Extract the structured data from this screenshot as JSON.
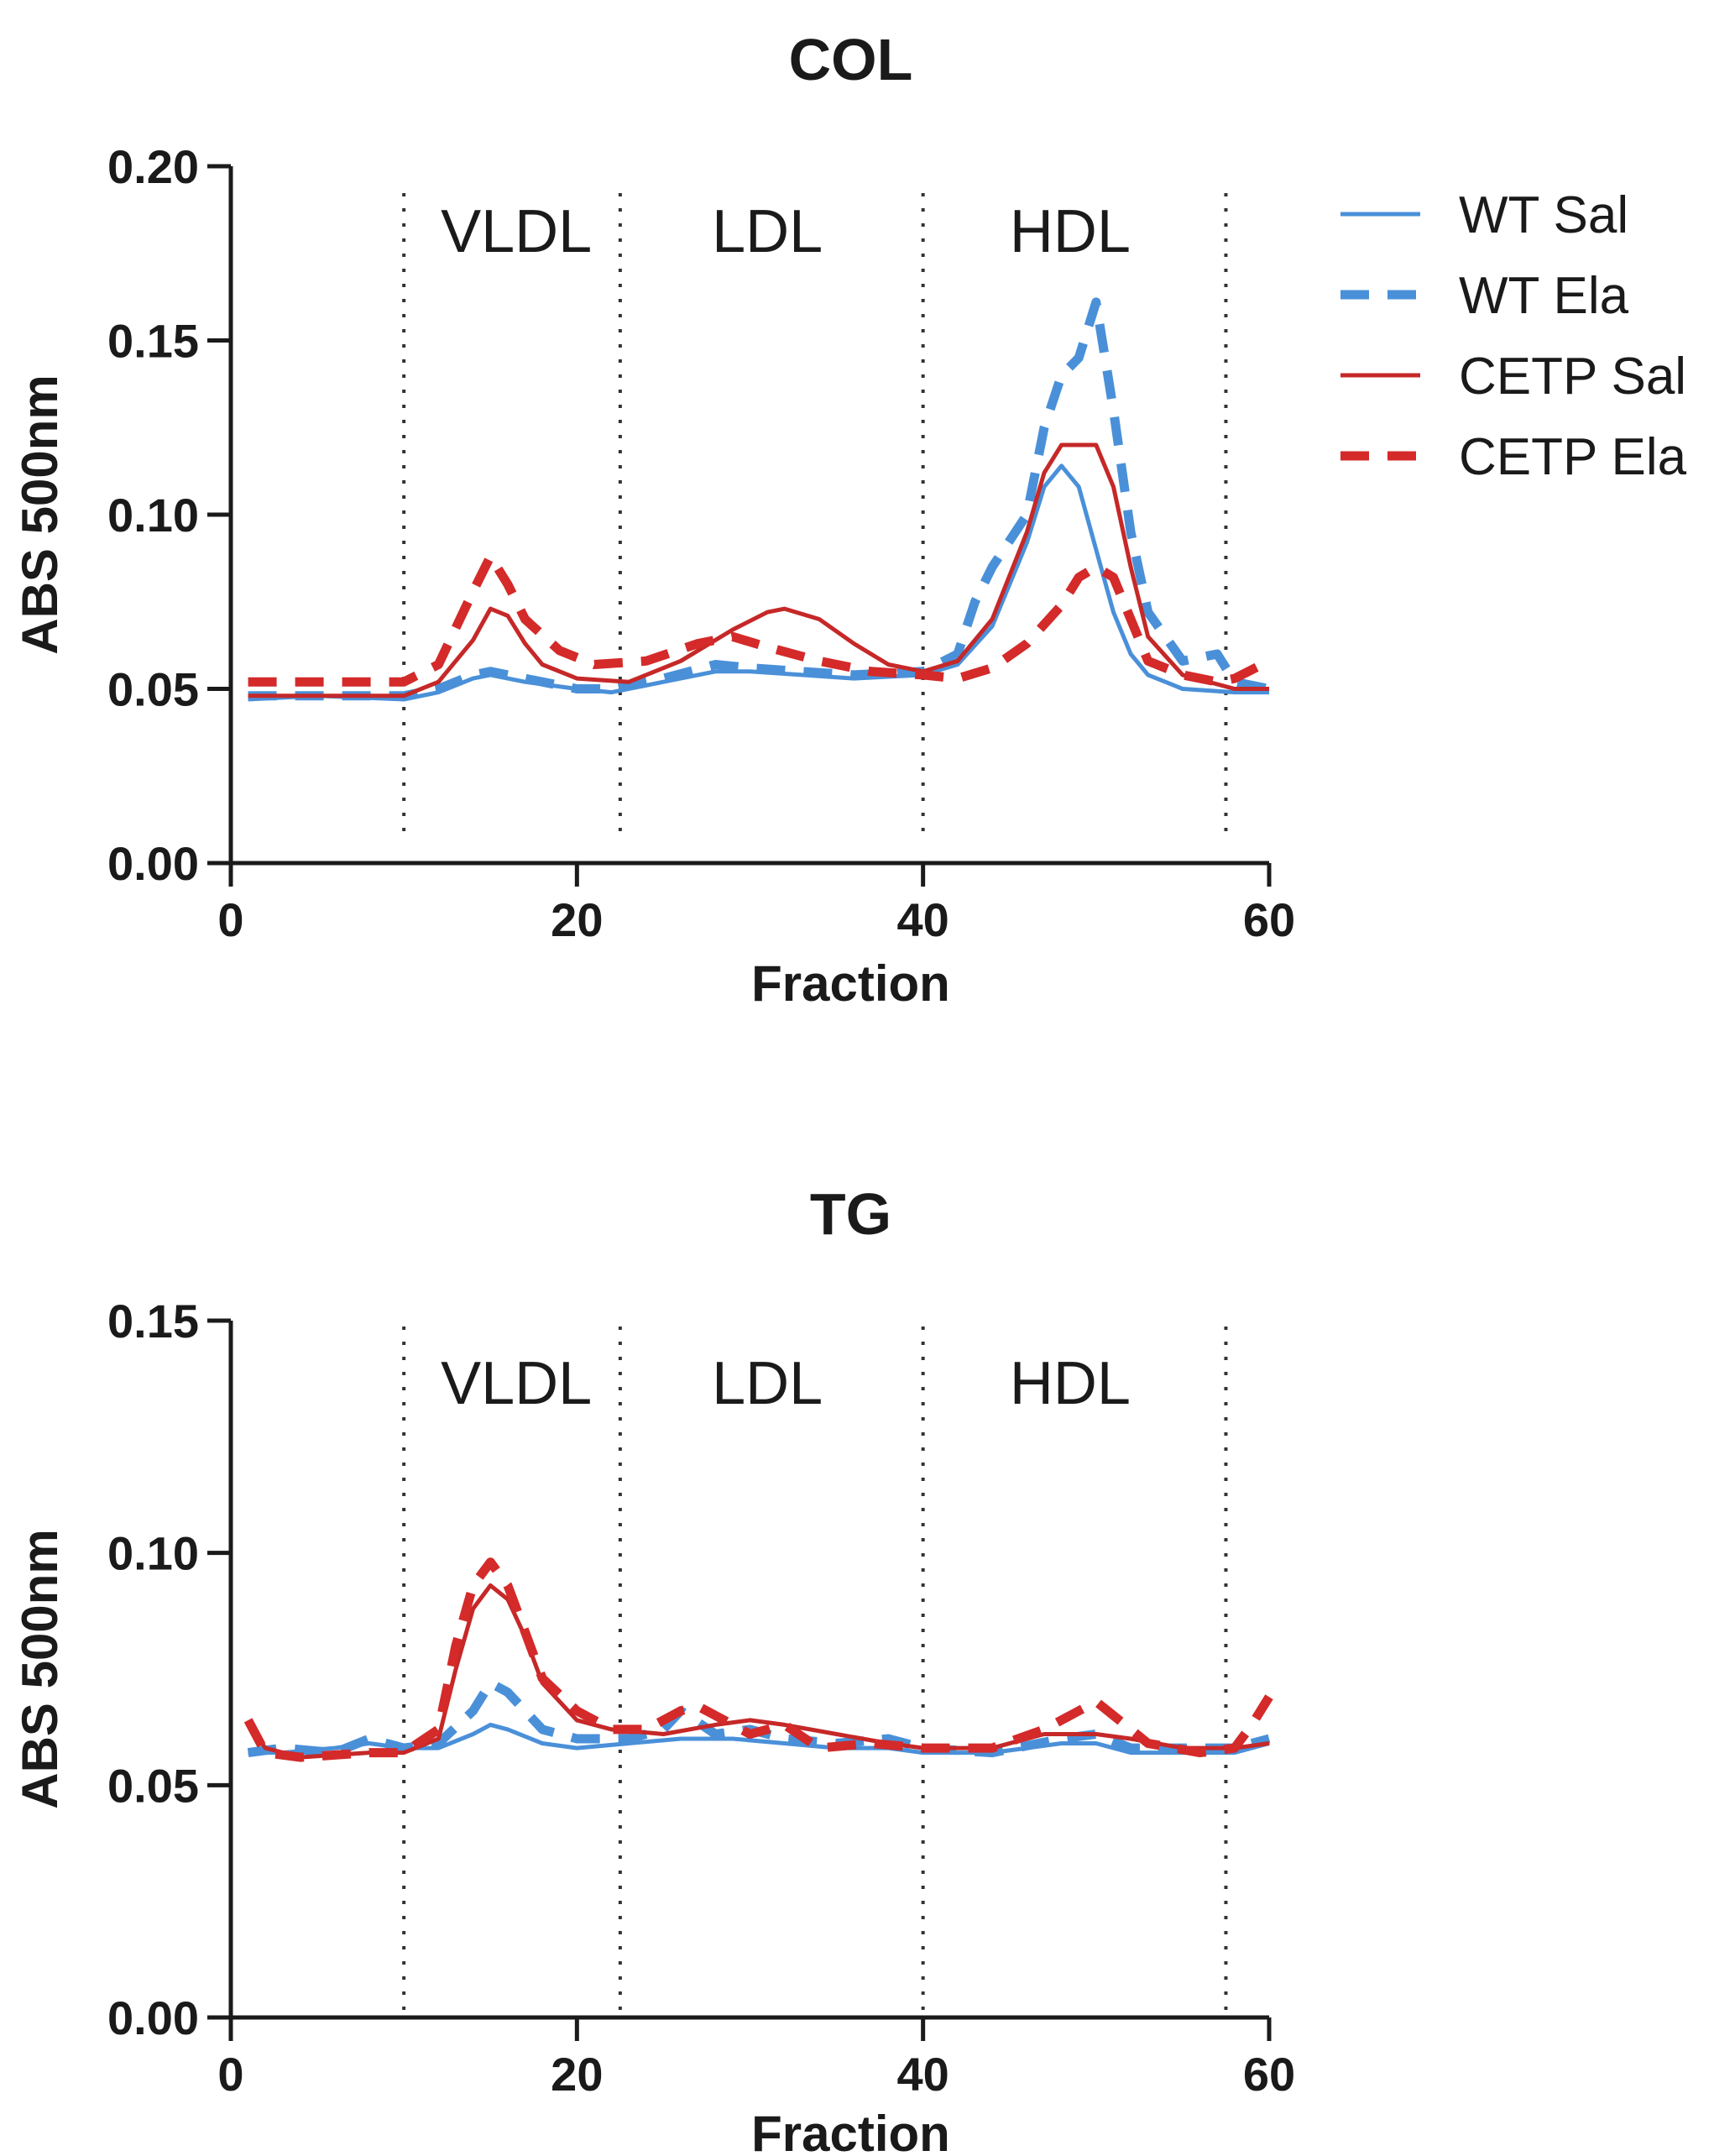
{
  "colors": {
    "wt": "#4a90d9",
    "cetp": "#d42a2a",
    "axis": "#1a1a1a",
    "divider": "#333333"
  },
  "legend": [
    {
      "name": "WT Sal",
      "color": "#4a90d9",
      "style": "solid"
    },
    {
      "name": "WT Ela",
      "color": "#4a90d9",
      "style": "dashed"
    },
    {
      "name": "CETP Sal",
      "color": "#c62828",
      "style": "solid"
    },
    {
      "name": "CETP Ela",
      "color": "#d42a2a",
      "style": "dashed"
    }
  ],
  "chart_data": [
    {
      "type": "line",
      "title": "COL",
      "xlabel": "Fraction",
      "ylabel": "ABS 500nm",
      "xlim": [
        0,
        60
      ],
      "ylim": [
        0,
        0.2
      ],
      "xticks": [
        0,
        20,
        40,
        60
      ],
      "xtick_labels": [
        "0",
        "20",
        "40",
        "60"
      ],
      "yticks": [
        0,
        0.05,
        0.1,
        0.15,
        0.2
      ],
      "ytick_labels": [
        "0.00",
        "0.05",
        "0.10",
        "0.15",
        "0.20"
      ],
      "dividers": [
        10,
        22.5,
        40,
        57.5
      ],
      "regions": [
        {
          "label": "VLDL",
          "x": 16.5
        },
        {
          "label": "LDL",
          "x": 31
        },
        {
          "label": "HDL",
          "x": 48.5
        }
      ],
      "series": [
        {
          "name": "WT Sal",
          "points": [
            [
              1,
              0.047
            ],
            [
              5,
              0.048
            ],
            [
              10,
              0.047
            ],
            [
              12,
              0.049
            ],
            [
              14,
              0.053
            ],
            [
              15,
              0.054
            ],
            [
              17,
              0.052
            ],
            [
              20,
              0.05
            ],
            [
              22,
              0.049
            ],
            [
              25,
              0.052
            ],
            [
              28,
              0.055
            ],
            [
              30,
              0.055
            ],
            [
              33,
              0.054
            ],
            [
              36,
              0.053
            ],
            [
              40,
              0.054
            ],
            [
              42,
              0.057
            ],
            [
              44,
              0.068
            ],
            [
              46,
              0.092
            ],
            [
              47,
              0.108
            ],
            [
              48,
              0.114
            ],
            [
              49,
              0.108
            ],
            [
              50,
              0.09
            ],
            [
              51,
              0.072
            ],
            [
              52,
              0.06
            ],
            [
              53,
              0.054
            ],
            [
              55,
              0.05
            ],
            [
              58,
              0.049
            ],
            [
              60,
              0.049
            ]
          ]
        },
        {
          "name": "WT Ela",
          "points": [
            [
              1,
              0.048
            ],
            [
              5,
              0.048
            ],
            [
              10,
              0.048
            ],
            [
              12,
              0.05
            ],
            [
              14,
              0.054
            ],
            [
              15,
              0.055
            ],
            [
              17,
              0.053
            ],
            [
              20,
              0.05
            ],
            [
              22,
              0.05
            ],
            [
              25,
              0.053
            ],
            [
              28,
              0.057
            ],
            [
              30,
              0.056
            ],
            [
              33,
              0.055
            ],
            [
              36,
              0.054
            ],
            [
              40,
              0.055
            ],
            [
              42,
              0.06
            ],
            [
              43,
              0.075
            ],
            [
              44,
              0.085
            ],
            [
              46,
              0.1
            ],
            [
              47,
              0.125
            ],
            [
              48,
              0.14
            ],
            [
              49,
              0.145
            ],
            [
              50,
              0.161
            ],
            [
              51,
              0.13
            ],
            [
              52,
              0.095
            ],
            [
              53,
              0.072
            ],
            [
              55,
              0.058
            ],
            [
              57,
              0.06
            ],
            [
              58,
              0.052
            ],
            [
              60,
              0.05
            ]
          ]
        },
        {
          "name": "CETP Sal",
          "points": [
            [
              1,
              0.048
            ],
            [
              5,
              0.048
            ],
            [
              10,
              0.048
            ],
            [
              12,
              0.052
            ],
            [
              14,
              0.064
            ],
            [
              15,
              0.073
            ],
            [
              16,
              0.071
            ],
            [
              17,
              0.063
            ],
            [
              18,
              0.057
            ],
            [
              20,
              0.053
            ],
            [
              23,
              0.052
            ],
            [
              26,
              0.058
            ],
            [
              29,
              0.067
            ],
            [
              31,
              0.072
            ],
            [
              32,
              0.073
            ],
            [
              34,
              0.07
            ],
            [
              36,
              0.063
            ],
            [
              38,
              0.057
            ],
            [
              40,
              0.055
            ],
            [
              42,
              0.058
            ],
            [
              44,
              0.07
            ],
            [
              46,
              0.095
            ],
            [
              47,
              0.112
            ],
            [
              48,
              0.12
            ],
            [
              50,
              0.12
            ],
            [
              51,
              0.108
            ],
            [
              52,
              0.085
            ],
            [
              53,
              0.065
            ],
            [
              55,
              0.054
            ],
            [
              58,
              0.05
            ],
            [
              60,
              0.05
            ]
          ]
        },
        {
          "name": "CETP Ela",
          "points": [
            [
              1,
              0.052
            ],
            [
              5,
              0.052
            ],
            [
              10,
              0.052
            ],
            [
              12,
              0.057
            ],
            [
              14,
              0.078
            ],
            [
              15,
              0.088
            ],
            [
              16,
              0.08
            ],
            [
              17,
              0.07
            ],
            [
              19,
              0.061
            ],
            [
              21,
              0.057
            ],
            [
              24,
              0.058
            ],
            [
              27,
              0.063
            ],
            [
              29,
              0.065
            ],
            [
              31,
              0.062
            ],
            [
              34,
              0.058
            ],
            [
              37,
              0.055
            ],
            [
              40,
              0.054
            ],
            [
              42,
              0.053
            ],
            [
              44,
              0.056
            ],
            [
              46,
              0.063
            ],
            [
              48,
              0.074
            ],
            [
              49,
              0.082
            ],
            [
              50,
              0.085
            ],
            [
              51,
              0.082
            ],
            [
              52,
              0.07
            ],
            [
              53,
              0.058
            ],
            [
              55,
              0.054
            ],
            [
              57,
              0.052
            ],
            [
              58,
              0.053
            ],
            [
              60,
              0.058
            ]
          ]
        }
      ]
    },
    {
      "type": "line",
      "title": "TG",
      "xlabel": "Fraction",
      "ylabel": "ABS 500nm",
      "xlim": [
        0,
        60
      ],
      "ylim": [
        0,
        0.15
      ],
      "xticks": [
        0,
        20,
        40,
        60
      ],
      "xtick_labels": [
        "0",
        "20",
        "40",
        "60"
      ],
      "yticks": [
        0,
        0.05,
        0.1,
        0.15
      ],
      "ytick_labels": [
        "0.00",
        "0.05",
        "0.10",
        "0.15"
      ],
      "dividers": [
        10,
        22.5,
        40,
        57.5
      ],
      "regions": [
        {
          "label": "VLDL",
          "x": 16.5
        },
        {
          "label": "LDL",
          "x": 31
        },
        {
          "label": "HDL",
          "x": 48.5
        }
      ],
      "series": [
        {
          "name": "WT Sal",
          "points": [
            [
              1,
              0.057
            ],
            [
              3,
              0.057
            ],
            [
              6,
              0.058
            ],
            [
              8,
              0.059
            ],
            [
              10,
              0.058
            ],
            [
              12,
              0.058
            ],
            [
              14,
              0.061
            ],
            [
              15,
              0.063
            ],
            [
              16,
              0.062
            ],
            [
              18,
              0.059
            ],
            [
              20,
              0.058
            ],
            [
              23,
              0.059
            ],
            [
              26,
              0.06
            ],
            [
              29,
              0.06
            ],
            [
              32,
              0.059
            ],
            [
              35,
              0.058
            ],
            [
              38,
              0.058
            ],
            [
              40,
              0.057
            ],
            [
              44,
              0.057
            ],
            [
              48,
              0.059
            ],
            [
              50,
              0.059
            ],
            [
              52,
              0.057
            ],
            [
              55,
              0.057
            ],
            [
              58,
              0.057
            ],
            [
              60,
              0.059
            ]
          ]
        },
        {
          "name": "WT Ela",
          "points": [
            [
              1,
              0.057
            ],
            [
              3,
              0.058
            ],
            [
              6,
              0.057
            ],
            [
              8,
              0.06
            ],
            [
              10,
              0.058
            ],
            [
              12,
              0.059
            ],
            [
              14,
              0.066
            ],
            [
              15,
              0.072
            ],
            [
              16,
              0.07
            ],
            [
              18,
              0.062
            ],
            [
              20,
              0.06
            ],
            [
              23,
              0.06
            ],
            [
              25,
              0.062
            ],
            [
              26,
              0.066
            ],
            [
              28,
              0.061
            ],
            [
              30,
              0.062
            ],
            [
              32,
              0.06
            ],
            [
              35,
              0.059
            ],
            [
              38,
              0.06
            ],
            [
              40,
              0.058
            ],
            [
              44,
              0.057
            ],
            [
              48,
              0.06
            ],
            [
              50,
              0.061
            ],
            [
              52,
              0.058
            ],
            [
              55,
              0.058
            ],
            [
              58,
              0.058
            ],
            [
              60,
              0.06
            ]
          ]
        },
        {
          "name": "CETP Sal",
          "points": [
            [
              1,
              0.063
            ],
            [
              2,
              0.058
            ],
            [
              4,
              0.056
            ],
            [
              8,
              0.057
            ],
            [
              10,
              0.057
            ],
            [
              12,
              0.06
            ],
            [
              13,
              0.075
            ],
            [
              14,
              0.088
            ],
            [
              15,
              0.093
            ],
            [
              16,
              0.09
            ],
            [
              17,
              0.082
            ],
            [
              18,
              0.072
            ],
            [
              20,
              0.064
            ],
            [
              22,
              0.062
            ],
            [
              25,
              0.061
            ],
            [
              28,
              0.063
            ],
            [
              30,
              0.064
            ],
            [
              32,
              0.063
            ],
            [
              35,
              0.061
            ],
            [
              38,
              0.059
            ],
            [
              40,
              0.058
            ],
            [
              44,
              0.058
            ],
            [
              47,
              0.061
            ],
            [
              50,
              0.061
            ],
            [
              52,
              0.06
            ],
            [
              55,
              0.058
            ],
            [
              58,
              0.058
            ],
            [
              60,
              0.059
            ]
          ]
        },
        {
          "name": "CETP Ela",
          "points": [
            [
              1,
              0.064
            ],
            [
              2,
              0.057
            ],
            [
              4,
              0.056
            ],
            [
              8,
              0.057
            ],
            [
              10,
              0.057
            ],
            [
              12,
              0.062
            ],
            [
              13,
              0.08
            ],
            [
              14,
              0.093
            ],
            [
              15,
              0.098
            ],
            [
              16,
              0.093
            ],
            [
              17,
              0.083
            ],
            [
              18,
              0.073
            ],
            [
              20,
              0.066
            ],
            [
              22,
              0.062
            ],
            [
              24,
              0.062
            ],
            [
              26,
              0.066
            ],
            [
              27,
              0.067
            ],
            [
              28,
              0.065
            ],
            [
              30,
              0.061
            ],
            [
              32,
              0.063
            ],
            [
              34,
              0.058
            ],
            [
              37,
              0.059
            ],
            [
              40,
              0.058
            ],
            [
              44,
              0.058
            ],
            [
              47,
              0.062
            ],
            [
              49,
              0.066
            ],
            [
              50,
              0.068
            ],
            [
              51,
              0.065
            ],
            [
              53,
              0.059
            ],
            [
              56,
              0.057
            ],
            [
              58,
              0.058
            ],
            [
              59,
              0.063
            ],
            [
              60,
              0.069
            ]
          ]
        }
      ]
    }
  ]
}
